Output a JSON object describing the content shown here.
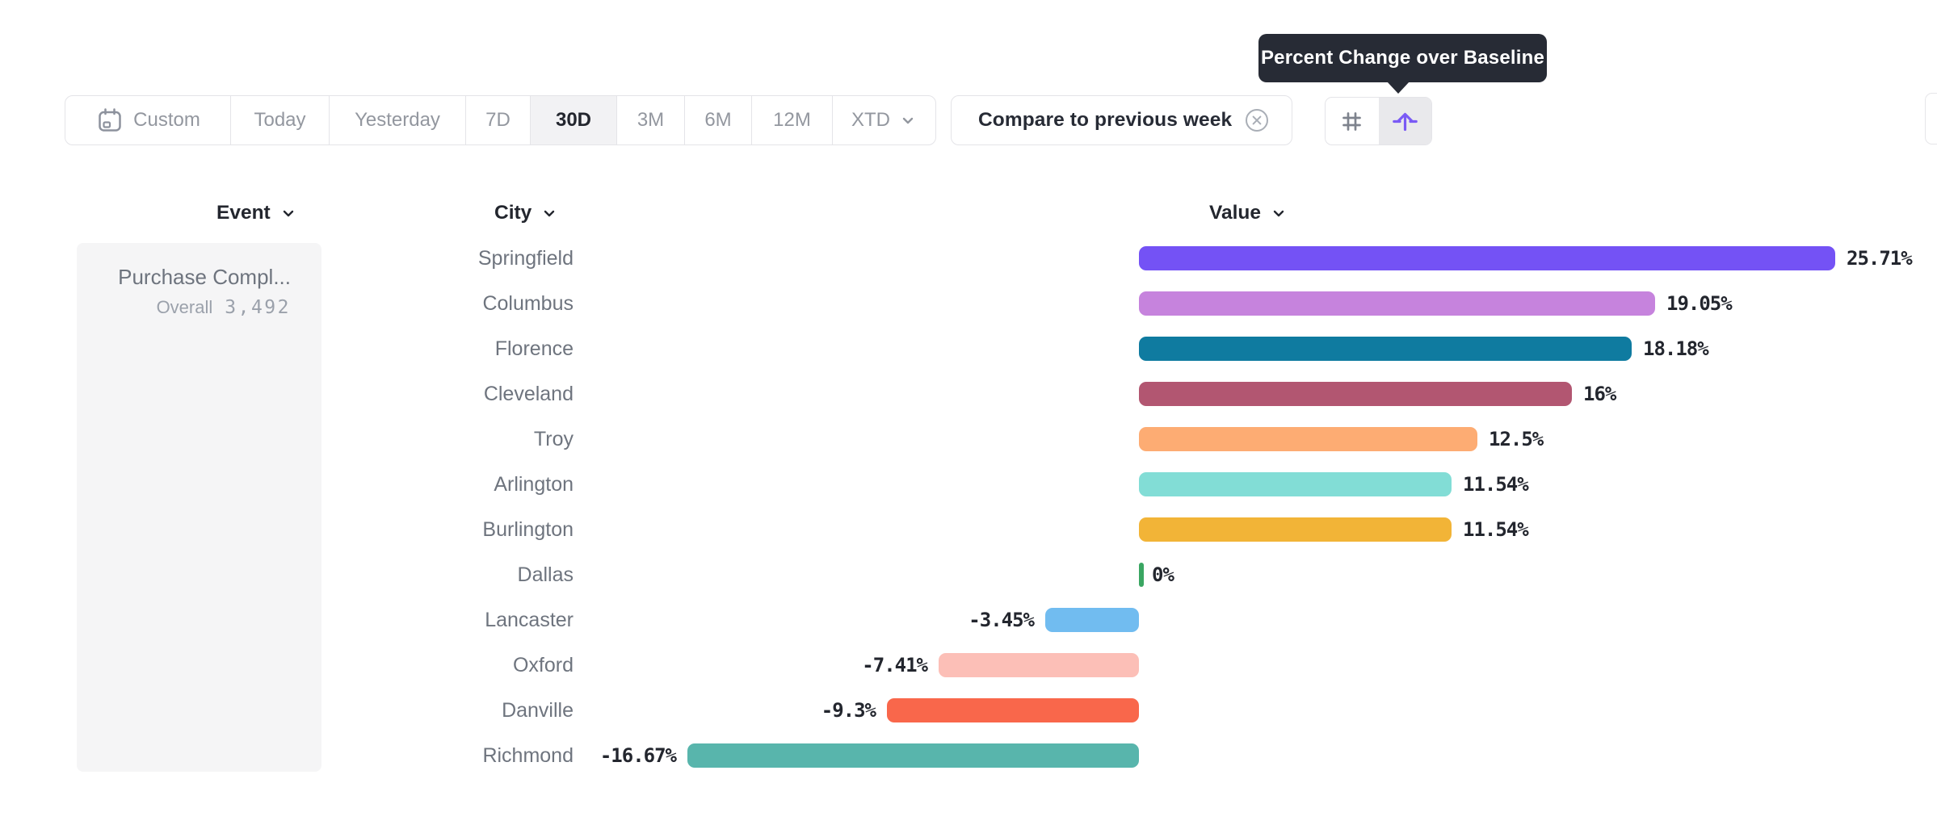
{
  "tooltip": {
    "text": "Percent Change over Baseline"
  },
  "toolbar": {
    "date_ranges": [
      {
        "label": "Custom",
        "icon": "calendar",
        "selected": false
      },
      {
        "label": "Today",
        "selected": false
      },
      {
        "label": "Yesterday",
        "selected": false
      },
      {
        "label": "7D",
        "selected": false
      },
      {
        "label": "30D",
        "selected": true
      },
      {
        "label": "3M",
        "selected": false
      },
      {
        "label": "6M",
        "selected": false
      },
      {
        "label": "12M",
        "selected": false
      },
      {
        "label": "XTD",
        "chevron": true,
        "selected": false
      }
    ],
    "compare_filter": {
      "label": "Compare to previous week",
      "icon": "close-circle"
    },
    "view_toggle": {
      "options": [
        "grid-values",
        "percent-change-over-baseline"
      ],
      "selected": "percent-change-over-baseline"
    }
  },
  "columns": {
    "event": "Event",
    "city": "City",
    "value": "Value"
  },
  "event_panel": {
    "event_name": "Purchase Compl...",
    "metric_label": "Overall",
    "metric_value": "3,492"
  },
  "chart_data": {
    "type": "bar",
    "orientation": "horizontal",
    "title": "Percent Change over Baseline",
    "unit": "%",
    "xlim": [
      -16.67,
      25.71
    ],
    "baseline": 0,
    "grid": false,
    "categories": [
      "Springfield",
      "Columbus",
      "Florence",
      "Cleveland",
      "Troy",
      "Arlington",
      "Burlington",
      "Dallas",
      "Lancaster",
      "Oxford",
      "Danville",
      "Richmond"
    ],
    "values": [
      25.71,
      19.05,
      18.18,
      16,
      12.5,
      11.54,
      11.54,
      0,
      -3.45,
      -7.41,
      -9.3,
      -16.67
    ],
    "value_labels": [
      "25.71%",
      "19.05%",
      "18.18%",
      "16%",
      "12.5%",
      "11.54%",
      "11.54%",
      "0%",
      "-3.45%",
      "-7.41%",
      "-9.3%",
      "-16.67%"
    ],
    "bar_colors": [
      "#7452f5",
      "#c683dd",
      "#0f7ba0",
      "#b25671",
      "#fdac73",
      "#82ddd6",
      "#f2b437",
      "#3aa662",
      "#71bcf0",
      "#fcbfb7",
      "#f9674b",
      "#58b5ac"
    ]
  },
  "colors": {
    "accent_purple": "#7a5af5",
    "tooltip_bg": "#272b35",
    "selected_bg": "#f2f2f4",
    "panel_bg": "#f5f5f6",
    "border": "#e4e4e8",
    "text_dark": "#23262e",
    "text_gray": "#6e747e",
    "text_light_gray": "#9ba1ab"
  }
}
